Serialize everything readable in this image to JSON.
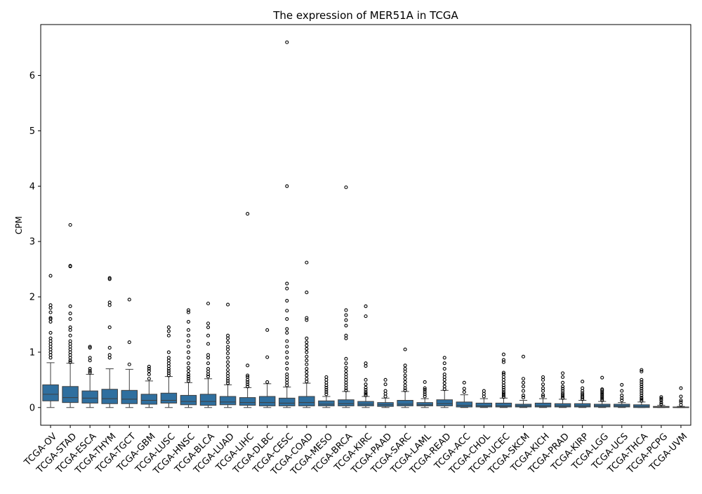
{
  "chart_data": {
    "type": "box",
    "title": "The expression of MER51A in TCGA",
    "xlabel": "",
    "ylabel": "CPM",
    "ylim": [
      -0.32,
      6.92
    ],
    "yticks": [
      0,
      1,
      2,
      3,
      4,
      5,
      6
    ],
    "grid": false,
    "legend": "none",
    "box_color": "#2f6f9f",
    "categories": [
      "TCGA-OV",
      "TCGA-STAD",
      "TCGA-ESCA",
      "TCGA-THYM",
      "TCGA-TGCT",
      "TCGA-GBM",
      "TCGA-LUSC",
      "TCGA-HNSC",
      "TCGA-BLCA",
      "TCGA-LUAD",
      "TCGA-LIHC",
      "TCGA-DLBC",
      "TCGA-CESC",
      "TCGA-COAD",
      "TCGA-MESO",
      "TCGA-BRCA",
      "TCGA-KIRC",
      "TCGA-PAAD",
      "TCGA-SARC",
      "TCGA-LAML",
      "TCGA-READ",
      "TCGA-ACC",
      "TCGA-CHOL",
      "TCGA-UCEC",
      "TCGA-SKCM",
      "TCGA-KICH",
      "TCGA-PRAD",
      "TCGA-KIRP",
      "TCGA-LGG",
      "TCGA-UCS",
      "TCGA-THCA",
      "TCGA-PCPG",
      "TCGA-UVM"
    ],
    "boxes": [
      {
        "whislo": 0.0,
        "q1": 0.12,
        "med": 0.24,
        "q3": 0.41,
        "whishi": 0.81,
        "fliers": [
          0.9,
          0.95,
          1.0,
          1.05,
          1.1,
          1.15,
          1.2,
          1.25,
          1.35,
          1.55,
          1.6,
          1.62,
          1.72,
          1.8,
          1.85,
          2.38
        ]
      },
      {
        "whislo": 0.0,
        "q1": 0.09,
        "med": 0.18,
        "q3": 0.38,
        "whishi": 0.8,
        "fliers": [
          0.82,
          0.85,
          0.9,
          0.95,
          1.0,
          1.05,
          1.1,
          1.15,
          1.2,
          1.3,
          1.4,
          1.45,
          1.6,
          1.7,
          1.83,
          2.55,
          2.56,
          3.3
        ]
      },
      {
        "whislo": 0.0,
        "q1": 0.08,
        "med": 0.17,
        "q3": 0.3,
        "whishi": 0.6,
        "fliers": [
          0.63,
          0.66,
          0.7,
          0.85,
          0.9,
          1.08,
          1.1
        ]
      },
      {
        "whislo": 0.0,
        "q1": 0.07,
        "med": 0.16,
        "q3": 0.33,
        "whishi": 0.7,
        "fliers": [
          0.9,
          0.95,
          1.08,
          1.45,
          1.85,
          1.9,
          2.32,
          2.34
        ]
      },
      {
        "whislo": 0.0,
        "q1": 0.07,
        "med": 0.15,
        "q3": 0.31,
        "whishi": 0.69,
        "fliers": [
          0.78,
          1.18,
          1.95
        ]
      },
      {
        "whislo": 0.0,
        "q1": 0.06,
        "med": 0.13,
        "q3": 0.24,
        "whishi": 0.48,
        "fliers": [
          0.52,
          0.6,
          0.66,
          0.7,
          0.74
        ]
      },
      {
        "whislo": 0.0,
        "q1": 0.08,
        "med": 0.13,
        "q3": 0.26,
        "whishi": 0.56,
        "fliers": [
          0.58,
          0.62,
          0.66,
          0.7,
          0.75,
          0.8,
          0.85,
          0.9,
          1.0,
          1.3,
          1.38,
          1.45
        ]
      },
      {
        "whislo": 0.0,
        "q1": 0.05,
        "med": 0.11,
        "q3": 0.22,
        "whishi": 0.45,
        "fliers": [
          0.48,
          0.52,
          0.56,
          0.6,
          0.66,
          0.72,
          0.8,
          0.9,
          1.0,
          1.1,
          1.2,
          1.3,
          1.4,
          1.55,
          1.72,
          1.76
        ]
      },
      {
        "whislo": 0.0,
        "q1": 0.04,
        "med": 0.11,
        "q3": 0.24,
        "whishi": 0.52,
        "fliers": [
          0.56,
          0.6,
          0.65,
          0.7,
          0.8,
          0.9,
          0.95,
          1.15,
          1.3,
          1.45,
          1.52,
          1.88
        ]
      },
      {
        "whislo": 0.0,
        "q1": 0.05,
        "med": 0.1,
        "q3": 0.2,
        "whishi": 0.41,
        "fliers": [
          0.44,
          0.48,
          0.52,
          0.57,
          0.62,
          0.68,
          0.75,
          0.82,
          0.9,
          0.98,
          1.05,
          1.1,
          1.18,
          1.25,
          1.3,
          1.86
        ]
      },
      {
        "whislo": 0.0,
        "q1": 0.04,
        "med": 0.09,
        "q3": 0.18,
        "whishi": 0.36,
        "fliers": [
          0.38,
          0.42,
          0.46,
          0.5,
          0.55,
          0.58,
          0.76,
          3.5
        ]
      },
      {
        "whislo": 0.0,
        "q1": 0.03,
        "med": 0.09,
        "q3": 0.2,
        "whishi": 0.43,
        "fliers": [
          0.46,
          0.91,
          1.4
        ]
      },
      {
        "whislo": 0.0,
        "q1": 0.03,
        "med": 0.08,
        "q3": 0.17,
        "whishi": 0.37,
        "fliers": [
          0.4,
          0.45,
          0.5,
          0.55,
          0.6,
          0.7,
          0.8,
          0.9,
          1.0,
          1.1,
          1.2,
          1.35,
          1.42,
          1.6,
          1.75,
          1.93,
          2.15,
          2.24,
          4.0,
          6.6
        ]
      },
      {
        "whislo": 0.0,
        "q1": 0.03,
        "med": 0.09,
        "q3": 0.2,
        "whishi": 0.44,
        "fliers": [
          0.47,
          0.52,
          0.58,
          0.64,
          0.7,
          0.78,
          0.85,
          0.92,
          1.0,
          1.06,
          1.12,
          1.18,
          1.25,
          1.58,
          1.62,
          2.08,
          2.62
        ]
      },
      {
        "whislo": 0.0,
        "q1": 0.03,
        "med": 0.06,
        "q3": 0.12,
        "whishi": 0.2,
        "fliers": [
          0.24,
          0.28,
          0.32,
          0.36,
          0.4,
          0.45,
          0.5,
          0.55
        ]
      },
      {
        "whislo": 0.0,
        "q1": 0.03,
        "med": 0.07,
        "q3": 0.14,
        "whishi": 0.29,
        "fliers": [
          0.31,
          0.35,
          0.4,
          0.45,
          0.5,
          0.55,
          0.6,
          0.66,
          0.72,
          0.8,
          0.88,
          1.25,
          1.3,
          1.48,
          1.58,
          1.67,
          1.76,
          3.98
        ]
      },
      {
        "whislo": 0.0,
        "q1": 0.03,
        "med": 0.06,
        "q3": 0.11,
        "whishi": 0.2,
        "fliers": [
          0.22,
          0.25,
          0.28,
          0.32,
          0.36,
          0.42,
          0.5,
          0.75,
          0.8,
          1.65,
          1.83
        ]
      },
      {
        "whislo": 0.0,
        "q1": 0.02,
        "med": 0.05,
        "q3": 0.09,
        "whishi": 0.17,
        "fliers": [
          0.2,
          0.25,
          0.3,
          0.42,
          0.5
        ]
      },
      {
        "whislo": 0.0,
        "q1": 0.03,
        "med": 0.06,
        "q3": 0.13,
        "whishi": 0.29,
        "fliers": [
          0.31,
          0.35,
          0.4,
          0.46,
          0.52,
          0.58,
          0.65,
          0.7,
          0.76,
          1.05
        ]
      },
      {
        "whislo": 0.0,
        "q1": 0.03,
        "med": 0.05,
        "q3": 0.09,
        "whishi": 0.16,
        "fliers": [
          0.2,
          0.24,
          0.28,
          0.32,
          0.35,
          0.46
        ]
      },
      {
        "whislo": 0.0,
        "q1": 0.03,
        "med": 0.07,
        "q3": 0.14,
        "whishi": 0.31,
        "fliers": [
          0.33,
          0.38,
          0.44,
          0.5,
          0.55,
          0.6,
          0.7,
          0.8,
          0.9
        ]
      },
      {
        "whislo": 0.0,
        "q1": 0.01,
        "med": 0.04,
        "q3": 0.1,
        "whishi": 0.23,
        "fliers": [
          0.28,
          0.34,
          0.45
        ]
      },
      {
        "whislo": 0.0,
        "q1": 0.01,
        "med": 0.03,
        "q3": 0.08,
        "whishi": 0.16,
        "fliers": [
          0.2,
          0.25,
          0.3
        ]
      },
      {
        "whislo": 0.0,
        "q1": 0.01,
        "med": 0.03,
        "q3": 0.08,
        "whishi": 0.17,
        "fliers": [
          0.19,
          0.22,
          0.25,
          0.28,
          0.32,
          0.36,
          0.4,
          0.45,
          0.5,
          0.55,
          0.6,
          0.63,
          0.82,
          0.86,
          0.96
        ]
      },
      {
        "whislo": 0.0,
        "q1": 0.01,
        "med": 0.03,
        "q3": 0.06,
        "whishi": 0.13,
        "fliers": [
          0.18,
          0.22,
          0.3,
          0.38,
          0.45,
          0.52,
          0.92
        ]
      },
      {
        "whislo": 0.0,
        "q1": 0.01,
        "med": 0.03,
        "q3": 0.08,
        "whishi": 0.16,
        "fliers": [
          0.2,
          0.23,
          0.3,
          0.35,
          0.42,
          0.5,
          0.55
        ]
      },
      {
        "whislo": 0.0,
        "q1": 0.01,
        "med": 0.03,
        "q3": 0.07,
        "whishi": 0.15,
        "fliers": [
          0.17,
          0.2,
          0.23,
          0.26,
          0.3,
          0.34,
          0.38,
          0.45,
          0.55,
          0.62
        ]
      },
      {
        "whislo": 0.0,
        "q1": 0.01,
        "med": 0.03,
        "q3": 0.07,
        "whishi": 0.13,
        "fliers": [
          0.15,
          0.18,
          0.2,
          0.23,
          0.26,
          0.3,
          0.35,
          0.47
        ]
      },
      {
        "whislo": 0.0,
        "q1": 0.01,
        "med": 0.03,
        "q3": 0.06,
        "whishi": 0.11,
        "fliers": [
          0.13,
          0.16,
          0.19,
          0.22,
          0.25,
          0.28,
          0.31,
          0.33,
          0.54
        ]
      },
      {
        "whislo": 0.0,
        "q1": 0.01,
        "med": 0.03,
        "q3": 0.06,
        "whishi": 0.09,
        "fliers": [
          0.13,
          0.17,
          0.22,
          0.3,
          0.41
        ]
      },
      {
        "whislo": 0.0,
        "q1": 0.0,
        "med": 0.02,
        "q3": 0.05,
        "whishi": 0.1,
        "fliers": [
          0.12,
          0.15,
          0.18,
          0.22,
          0.26,
          0.3,
          0.34,
          0.38,
          0.42,
          0.46,
          0.5,
          0.65,
          0.68
        ]
      },
      {
        "whislo": 0.0,
        "q1": 0.0,
        "med": 0.01,
        "q3": 0.02,
        "whishi": 0.04,
        "fliers": [
          0.06,
          0.09,
          0.13,
          0.16,
          0.19
        ]
      },
      {
        "whislo": 0.0,
        "q1": 0.0,
        "med": 0.0,
        "q3": 0.01,
        "whishi": 0.02,
        "fliers": [
          0.05,
          0.1,
          0.13,
          0.2,
          0.35
        ]
      }
    ]
  }
}
